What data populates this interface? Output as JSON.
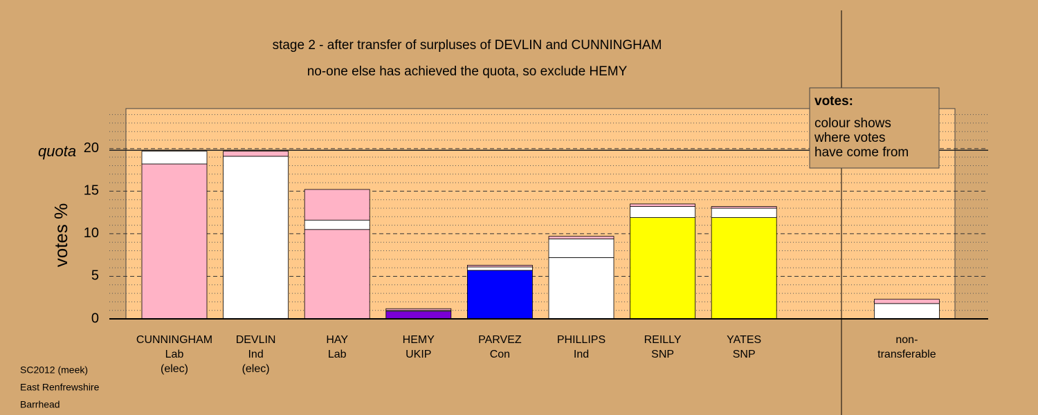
{
  "chart_data": {
    "type": "stacked_bar",
    "title": "stage 2 - after transfer of surpluses of DEVLIN and CUNNINGHAM",
    "subtitle": "no-one else has achieved the quota, so exclude HEMY",
    "y_label": "votes %",
    "categories": [
      [
        "CUNNINGHAM",
        "Lab",
        "(elec)"
      ],
      [
        "DEVLIN",
        "Ind",
        "(elec)"
      ],
      [
        "HAY",
        "Lab"
      ],
      [
        "HEMY",
        "UKIP"
      ],
      [
        "PARVEZ",
        "Con"
      ],
      [
        "PHILLIPS",
        "Ind"
      ],
      [
        "REILLY",
        "SNP"
      ],
      [
        "YATES",
        "SNP"
      ],
      null,
      [
        "non-",
        "transferable"
      ]
    ],
    "series": [
      {
        "colors": [
          "#ffb3c6",
          "#ffffff",
          "#ffb3c6",
          "#7a00d6",
          "#0000ff",
          "#ffffff",
          "#ffff00",
          "#ffff00",
          null,
          "#ffffff"
        ],
        "values": [
          18.2,
          19.1,
          10.5,
          0.9,
          5.7,
          7.2,
          11.9,
          11.9,
          null,
          0
        ]
      },
      {
        "color": "#ffffff",
        "values": [
          1.5,
          null,
          1.1,
          0.1,
          0.4,
          2.2,
          1.3,
          1.1,
          null,
          1.8
        ]
      },
      {
        "color": "#ffb3c6",
        "values": [
          null,
          0.6,
          3.6,
          0.2,
          0.2,
          0.3,
          0.3,
          0.2,
          null,
          0.5
        ]
      }
    ],
    "ylim": [
      0,
      24.7
    ],
    "yticks": [
      0,
      5,
      10,
      15,
      20
    ],
    "minor_yticks": [
      1,
      2,
      3,
      4,
      6,
      7,
      8,
      9,
      11,
      12,
      13,
      14,
      16,
      17,
      18,
      19,
      21,
      22,
      23,
      24
    ],
    "quota": 19.8,
    "quota_label": "quota",
    "note": {
      "title": "votes:",
      "lines": [
        "colour shows",
        "where votes",
        "have come from"
      ]
    },
    "footnote": [
      "SC2012 (meek)",
      "East Renfrewshire",
      "Barrhead"
    ]
  }
}
